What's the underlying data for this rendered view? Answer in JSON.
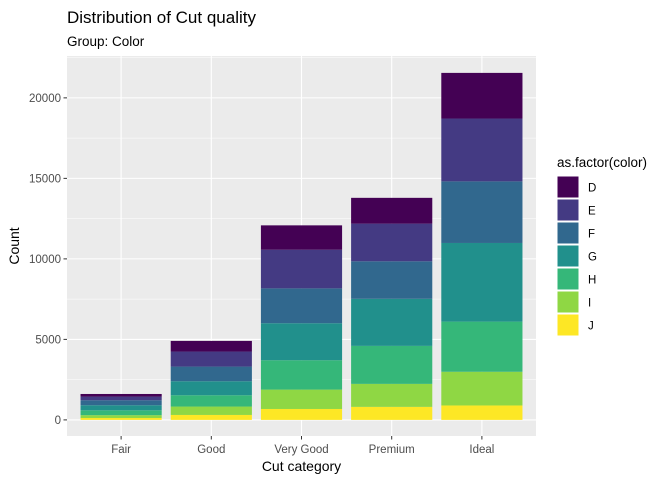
{
  "chart_data": {
    "type": "bar",
    "stacked": true,
    "title": "Distribution of Cut quality",
    "subtitle": "Group: Color",
    "xlabel": "Cut category",
    "ylabel": "Count",
    "categories": [
      "Fair",
      "Good",
      "Very Good",
      "Premium",
      "Ideal"
    ],
    "ylim": [
      -1000,
      22600
    ],
    "yticks": [
      0,
      5000,
      10000,
      15000,
      20000
    ],
    "ytick_labels": [
      "0",
      "5000",
      "10000",
      "15000",
      "20000"
    ],
    "grid": true,
    "legend": {
      "title": "as.factor(color)",
      "position": "right"
    },
    "series": [
      {
        "name": "D",
        "color": "#440154",
        "values": [
          163,
          662,
          1513,
          1603,
          2834
        ]
      },
      {
        "name": "E",
        "color": "#443A83",
        "values": [
          224,
          933,
          2400,
          2337,
          3903
        ]
      },
      {
        "name": "F",
        "color": "#31688E",
        "values": [
          312,
          909,
          2164,
          2331,
          3826
        ]
      },
      {
        "name": "G",
        "color": "#21908C",
        "values": [
          314,
          871,
          2299,
          2924,
          4884
        ]
      },
      {
        "name": "H",
        "color": "#35B779",
        "values": [
          303,
          702,
          1824,
          2360,
          3115
        ]
      },
      {
        "name": "I",
        "color": "#8FD744",
        "values": [
          175,
          522,
          1204,
          1428,
          2093
        ]
      },
      {
        "name": "J",
        "color": "#FDE725",
        "values": [
          119,
          307,
          678,
          808,
          896
        ]
      }
    ]
  }
}
